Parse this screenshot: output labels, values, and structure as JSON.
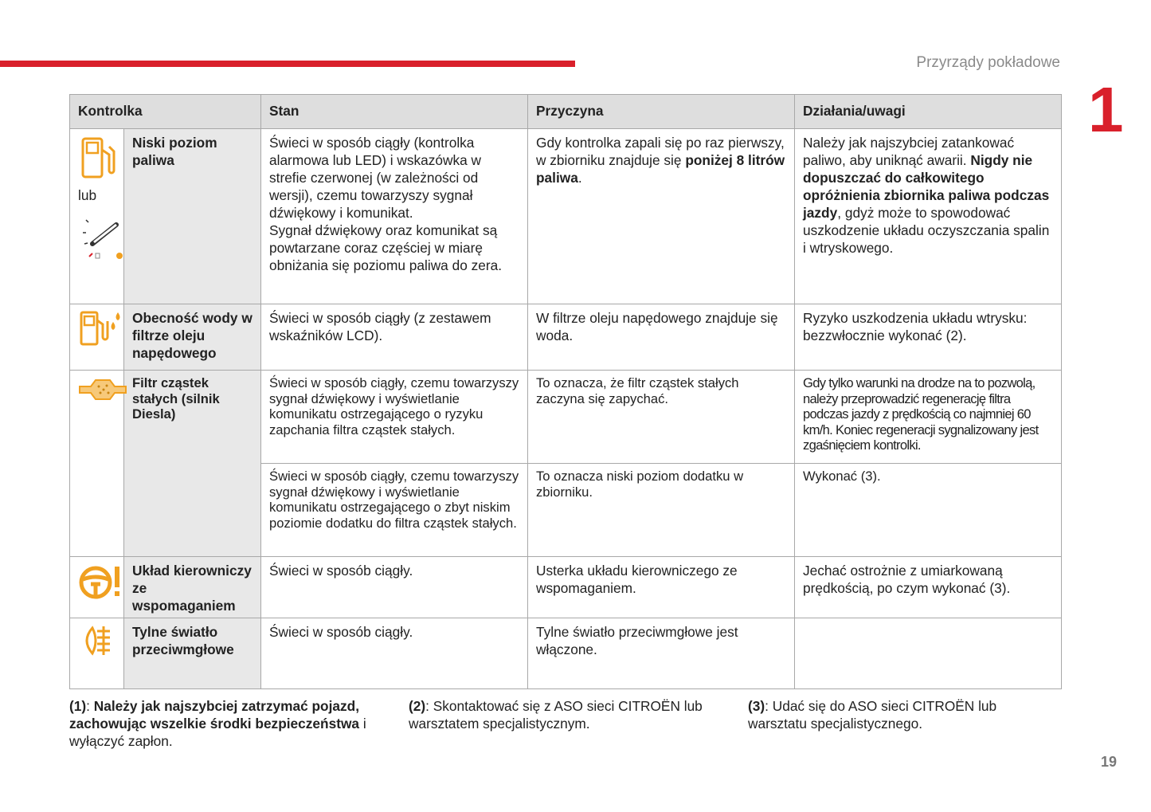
{
  "header": {
    "section": "Przyrządy pokładowe",
    "chapter": "1"
  },
  "table": {
    "columns": [
      "Kontrolka",
      "Stan",
      "Przyczyna",
      "Działania/uwagi"
    ],
    "rows": [
      {
        "name": "Niski poziom paliwa",
        "icon_alt": "lub",
        "entries": [
          {
            "state": [
              {
                "text": "Świeci w sposób ciągły (kontrolka alarmowa lub LED) i wskazówka w strefie czerwonej (w zależności od wersji), czemu towarzyszy sygnał dźwiękowy i komunikat."
              },
              {
                "text": "Sygnał dźwiękowy oraz komunikat są powtarzane coraz częściej w miarę obniżania się poziomu paliwa do zera.",
                "block": true
              }
            ],
            "cause": [
              {
                "text": "Gdy kontrolka zapali się po raz pierwszy, w zbiorniku znajduje się "
              },
              {
                "text": "poniżej 8 litrów paliwa",
                "bold": true
              },
              {
                "text": "."
              }
            ],
            "action": [
              {
                "text": "Należy jak najszybciej zatankować paliwo, aby uniknąć awarii. "
              },
              {
                "text": "Nigdy nie dopuszczać do całkowitego opróżnienia zbiornika paliwa podczas jazdy",
                "bold": true
              },
              {
                "text": ", gdyż może to spowodować uszkodzenie układu oczyszczania spalin i wtryskowego."
              }
            ]
          }
        ]
      },
      {
        "name": "Obecność wody w filtrze oleju napędowego",
        "entries": [
          {
            "state": [
              {
                "text": "Świeci w sposób ciągły (z zestawem wskaźników LCD)."
              }
            ],
            "cause": [
              {
                "text": "W filtrze oleju napędowego znajduje się woda."
              }
            ],
            "action": [
              {
                "text": "Ryzyko uszkodzenia układu wtrysku: bezzwłocznie wykonać (2)."
              }
            ]
          }
        ]
      },
      {
        "name": "Filtr cząstek stałych (silnik Diesla)",
        "entries": [
          {
            "state": [
              {
                "text": "Świeci w sposób ciągły, czemu towarzyszy sygnał dźwiękowy i wyświetlanie komunikatu ostrzegającego o ryzyku zapchania filtra cząstek stałych."
              }
            ],
            "cause": [
              {
                "text": "To oznacza, że filtr cząstek stałych zaczyna się zapychać."
              }
            ],
            "action": [
              {
                "text": "Gdy tylko warunki na drodze na to pozwolą, należy przeprowadzić regenerację filtra podczas jazdy z prędkością co najmniej 60 km/h. Koniec regeneracji sygnalizowany jest zgaśnięciem kontrolki."
              }
            ]
          },
          {
            "state": [
              {
                "text": "Świeci w sposób ciągły, czemu towarzyszy sygnał dźwiękowy i wyświetlanie komunikatu ostrzegającego o zbyt niskim poziomie dodatku do filtra cząstek stałych."
              }
            ],
            "cause": [
              {
                "text": "To oznacza niski poziom dodatku w zbiorniku."
              }
            ],
            "action": [
              {
                "text": "Wykonać (3)."
              }
            ]
          }
        ]
      },
      {
        "name": "Układ kierowniczy ze wspomaganiem",
        "entries": [
          {
            "state": [
              {
                "text": "Świeci w sposób ciągły."
              }
            ],
            "cause": [
              {
                "text": "Usterka układu kierowniczego ze wspomaganiem."
              }
            ],
            "action": [
              {
                "text": "Jechać ostrożnie z umiarkowaną prędkością, po czym wykonać (3)."
              }
            ]
          }
        ]
      },
      {
        "name": "Tylne światło przeciwmgłowe",
        "entries": [
          {
            "state": [
              {
                "text": "Świeci w sposób ciągły."
              }
            ],
            "cause": [
              {
                "text": "Tylne światło przeciwmgłowe jest włączone."
              }
            ],
            "action": []
          }
        ]
      }
    ]
  },
  "footnotes": [
    [
      {
        "text": "(1)",
        "bold": true
      },
      {
        "text": ": "
      },
      {
        "text": "Należy jak najszybciej zatrzymać pojazd, zachowując wszelkie środki bezpieczeństwa",
        "bold": true
      },
      {
        "text": " i wyłączyć zapłon."
      }
    ],
    [
      {
        "text": "(2)",
        "bold": true
      },
      {
        "text": ": Skontaktować się z ASO sieci CITROËN lub warsztatem specjalistycznym."
      }
    ],
    [
      {
        "text": "(3)",
        "bold": true
      },
      {
        "text": ": Udać się do ASO sieci CITROËN lub warsztatu specjalistycznego."
      }
    ]
  ],
  "page_number": "19"
}
